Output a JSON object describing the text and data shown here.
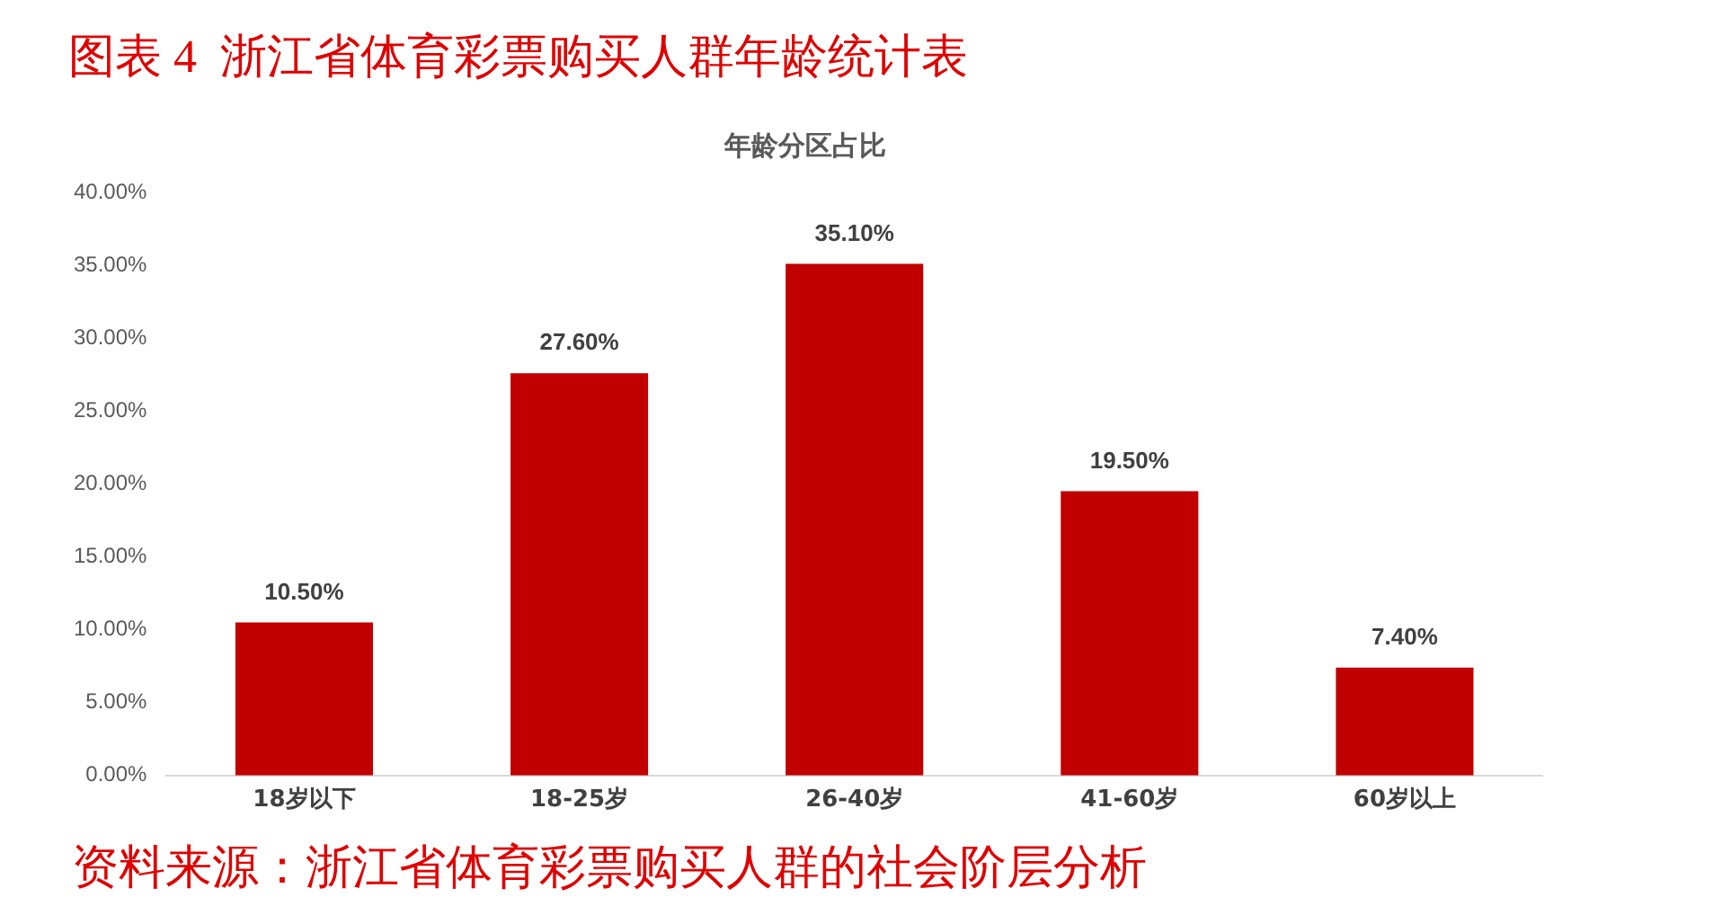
{
  "chart_data": {
    "type": "bar",
    "title": "图表 4  浙江省体育彩票购买人群年龄统计表",
    "subtitle": "年龄分区占比",
    "categories": [
      "18岁以下",
      "18-25岁",
      "26-40岁",
      "41-60岁",
      "60岁以上"
    ],
    "values": [
      10.5,
      27.6,
      35.1,
      19.5,
      7.4
    ],
    "value_labels": [
      "10.50%",
      "27.60%",
      "35.10%",
      "19.50%",
      "7.40%"
    ],
    "color": "#c00000",
    "ylim": [
      0,
      40
    ],
    "yticks": [
      {
        "value": 0,
        "label": "0.00%"
      },
      {
        "value": 5,
        "label": "5.00%"
      },
      {
        "value": 10,
        "label": "10.00%"
      },
      {
        "value": 15,
        "label": "15.00%"
      },
      {
        "value": 20,
        "label": "20.00%"
      },
      {
        "value": 25,
        "label": "25.00%"
      },
      {
        "value": 30,
        "label": "30.00%"
      },
      {
        "value": 35,
        "label": "35.00%"
      },
      {
        "value": 40,
        "label": "40.00%"
      }
    ],
    "grid": false,
    "legend": false,
    "annotations": [
      "资料来源：浙江省体育彩票购买人群的社会阶层分析"
    ]
  }
}
